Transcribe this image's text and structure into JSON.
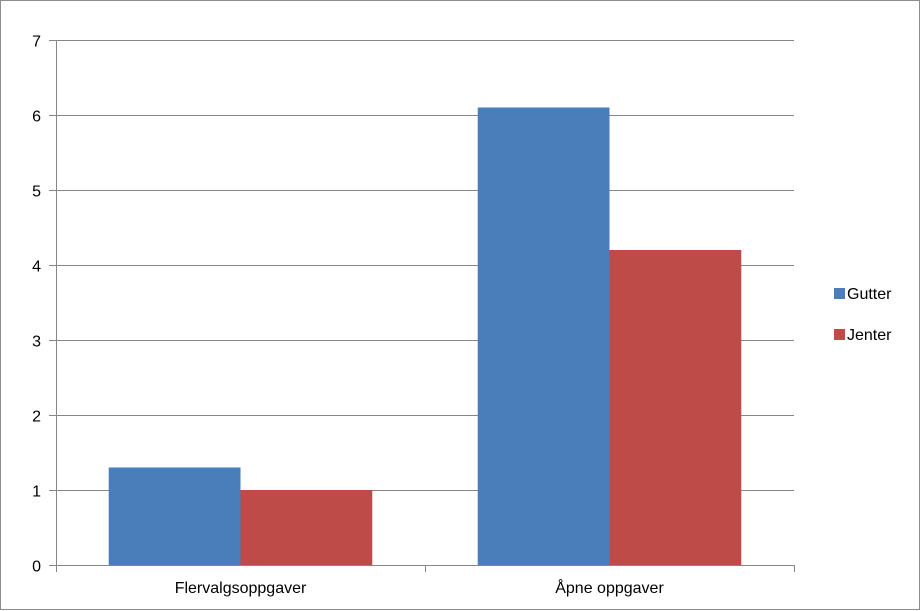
{
  "chart_data": {
    "type": "bar",
    "categories": [
      "Flervalgsoppgaver",
      "Åpne oppgaver"
    ],
    "series": [
      {
        "name": "Gutter",
        "values": [
          1.3,
          6.1
        ],
        "color": "#4A7EBB"
      },
      {
        "name": "Jenter",
        "values": [
          1.0,
          4.2
        ],
        "color": "#BE4B48"
      }
    ],
    "title": "",
    "xlabel": "",
    "ylabel": "",
    "ylim": [
      0,
      7
    ],
    "yticks": [
      "0",
      "1",
      "2",
      "3",
      "4",
      "5",
      "6",
      "7"
    ],
    "grid": true,
    "legend_position": "right"
  },
  "colors": {
    "gridline": "#868686",
    "axis": "#868686",
    "frame": "#8c8c8c"
  }
}
